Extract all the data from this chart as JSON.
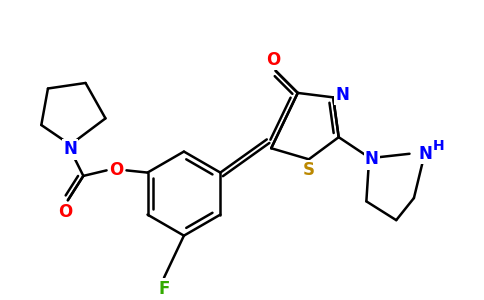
{
  "background_color": "#ffffff",
  "atom_colors": {
    "N": "#0000ff",
    "O": "#ff0000",
    "S": "#bb8800",
    "F": "#33aa00",
    "C": "#000000",
    "H": "#0000ff"
  },
  "bond_color": "#000000",
  "bond_width": 1.8
}
